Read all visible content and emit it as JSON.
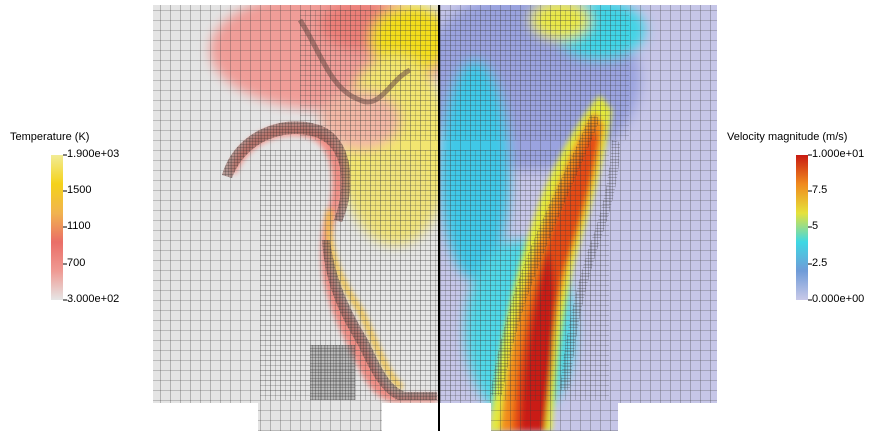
{
  "temperature_colorbar": {
    "title": "Temperature (K)",
    "ticks": [
      {
        "label": "1.900e+03",
        "value": 1900
      },
      {
        "label": "1500",
        "value": 1500
      },
      {
        "label": "1100",
        "value": 1100
      },
      {
        "label": "700",
        "value": 700
      },
      {
        "label": "3.000e+02",
        "value": 300
      }
    ],
    "range": [
      300,
      1900
    ],
    "colors": [
      "#e6e6e6",
      "#ef9a93",
      "#ea6e67",
      "#f1b34f",
      "#f4d21a",
      "#f2ec96"
    ]
  },
  "velocity_colorbar": {
    "title": "Velocity magnitude (m/s)",
    "ticks": [
      {
        "label": "1.000e+01",
        "value": 10
      },
      {
        "label": "7.5",
        "value": 7.5
      },
      {
        "label": "5",
        "value": 5
      },
      {
        "label": "2.5",
        "value": 2.5
      },
      {
        "label": "0.000e+00",
        "value": 0
      }
    ],
    "range": [
      0,
      10
    ],
    "colors": [
      "#c9c9e8",
      "#6f9bd8",
      "#3ed8e4",
      "#e6e23a",
      "#f08a1e",
      "#c81a12"
    ]
  }
}
